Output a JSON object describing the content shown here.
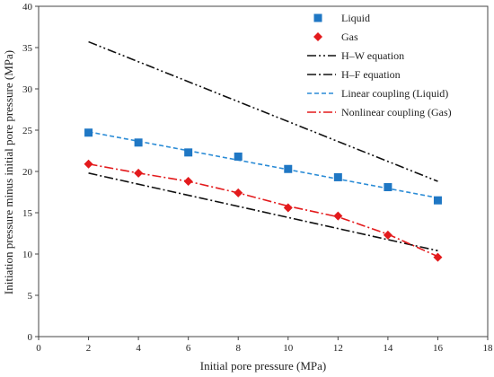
{
  "chart_data": {
    "type": "scatter",
    "xlabel": "Initial pore pressure (MPa)",
    "ylabel": "Initiation pressure minus initial pore pressure (MPa)",
    "xlim": [
      0,
      18
    ],
    "ylim": [
      0,
      40
    ],
    "xticks": [
      0,
      2,
      4,
      6,
      8,
      10,
      12,
      14,
      16,
      18
    ],
    "yticks": [
      0,
      5,
      10,
      15,
      20,
      25,
      30,
      35,
      40
    ],
    "grid": false,
    "legend_position": "top-right",
    "series": [
      {
        "name": "Liquid",
        "kind": "markers",
        "marker": "square",
        "color": "#1f77c4",
        "x": [
          2,
          4,
          6,
          8,
          10,
          12,
          14,
          16
        ],
        "y": [
          24.7,
          23.5,
          22.3,
          21.8,
          20.3,
          19.3,
          18.1,
          16.5
        ]
      },
      {
        "name": "Gas",
        "kind": "markers",
        "marker": "diamond",
        "color": "#e31a1c",
        "x": [
          2,
          4,
          6,
          8,
          10,
          12,
          14,
          16
        ],
        "y": [
          20.9,
          19.8,
          18.8,
          17.4,
          15.6,
          14.6,
          12.3,
          9.6
        ]
      },
      {
        "name": "H–W equation",
        "kind": "line",
        "dash": "dashdotdot",
        "color": "#111111",
        "x": [
          2,
          16
        ],
        "y": [
          35.7,
          18.8
        ]
      },
      {
        "name": "H–F equation",
        "kind": "line",
        "dash": "dashdot",
        "color": "#111111",
        "x": [
          2,
          16
        ],
        "y": [
          19.8,
          10.4
        ]
      },
      {
        "name": "Linear coupling (Liquid)",
        "kind": "line",
        "dash": "dash",
        "color": "#2b8cd6",
        "x": [
          2,
          16
        ],
        "y": [
          24.8,
          16.8
        ]
      },
      {
        "name": "Nonlinear coupling (Gas)",
        "kind": "line",
        "dash": "dashdot",
        "color": "#e31a1c",
        "x": [
          2,
          4,
          6,
          8,
          10,
          12,
          14,
          16
        ],
        "y": [
          20.9,
          19.8,
          18.8,
          17.4,
          15.8,
          14.5,
          12.4,
          9.7
        ]
      }
    ]
  }
}
